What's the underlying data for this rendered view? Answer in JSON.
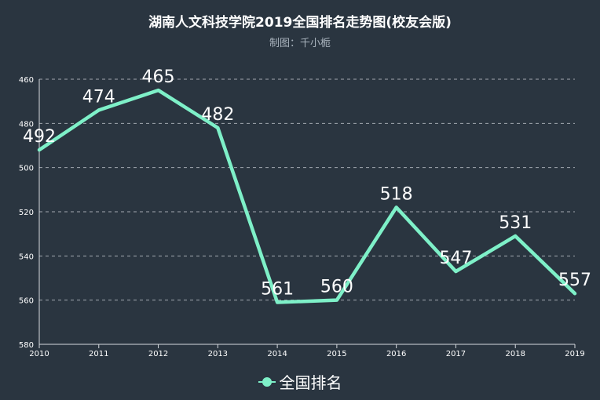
{
  "chart_data": {
    "type": "line",
    "title": "湖南人文科技学院2019全国排名走势图(校友会版)",
    "subtitle": "制图：千小栀",
    "x": [
      "2010",
      "2011",
      "2012",
      "2013",
      "2014",
      "2015",
      "2016",
      "2017",
      "2018",
      "2019"
    ],
    "series": [
      {
        "name": "全国排名",
        "values": [
          492,
          474,
          465,
          482,
          561,
          560,
          518,
          547,
          531,
          557
        ],
        "color": "#7ef0c8"
      }
    ],
    "y_axis": {
      "inverted": true,
      "min": 460,
      "max": 580,
      "ticks": [
        "460",
        "480",
        "500",
        "520",
        "540",
        "560",
        "580"
      ]
    },
    "grid": true,
    "legend_position": "bottom-center",
    "background": "#2a3540"
  }
}
